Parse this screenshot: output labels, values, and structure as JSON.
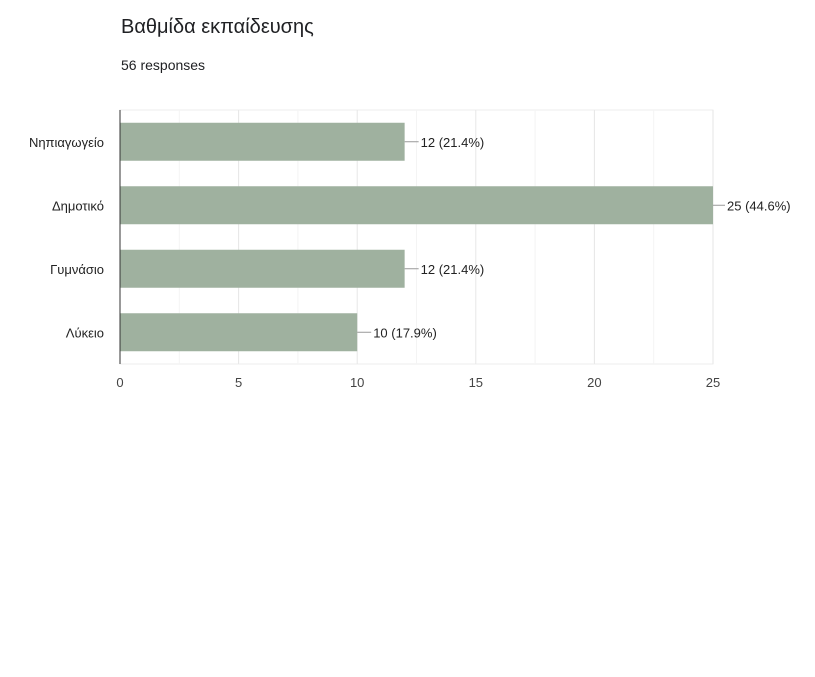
{
  "question": {
    "title": "Βαθμίδα εκπαίδευσης",
    "responses": "56 responses"
  },
  "chart_data": {
    "type": "bar",
    "orientation": "horizontal",
    "categories": [
      "Νηπιαγωγείο",
      "Δημοτικό",
      "Γυμνάσιο",
      "Λύκειο"
    ],
    "values": [
      12,
      25,
      12,
      10
    ],
    "data_labels": [
      "12 (21.4%)",
      "25 (44.6%)",
      "12 (21.4%)",
      "10 (17.9%)"
    ],
    "xlim": [
      0,
      25
    ],
    "x_ticks": [
      0,
      5,
      10,
      15,
      20,
      25
    ],
    "grid": true,
    "bar_color": "#9fb19f"
  }
}
